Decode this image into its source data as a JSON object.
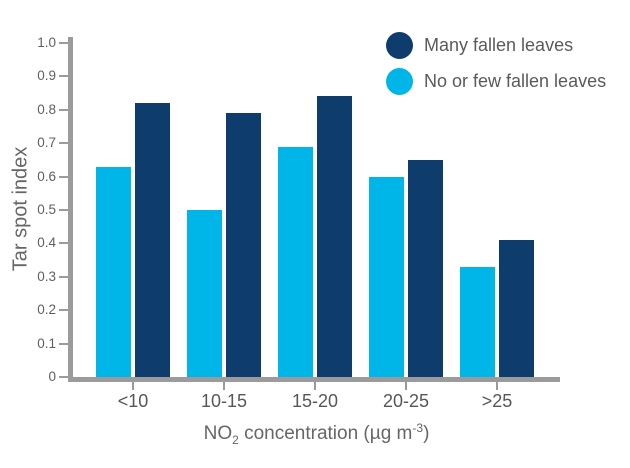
{
  "chart_data": {
    "type": "bar",
    "title": "",
    "categories": [
      "<10",
      "10-15",
      "15-20",
      "20-25",
      ">25"
    ],
    "series": [
      {
        "name": "Many fallen leaves",
        "color": "#0e3c6d",
        "position_in_group": "right",
        "values": [
          0.82,
          0.79,
          0.84,
          0.65,
          0.41
        ]
      },
      {
        "name": "No or few fallen leaves",
        "color": "#00b5e8",
        "position_in_group": "left",
        "values": [
          0.63,
          0.5,
          0.69,
          0.6,
          0.33
        ]
      }
    ],
    "ylabel": "Tar spot index",
    "xlabel": "NO2 concentration (µg m-3)",
    "xlabel_parts": {
      "base1": "NO",
      "sub": "2",
      "base2": " concentration (µg m",
      "sup": "-3",
      "base3": ")"
    },
    "ylim": [
      0,
      1.0
    ],
    "y_ticks": [
      {
        "value": 0.0,
        "label": "0"
      },
      {
        "value": 0.1,
        "label": "0.1"
      },
      {
        "value": 0.2,
        "label": "0.2"
      },
      {
        "value": 0.3,
        "label": "0.3"
      },
      {
        "value": 0.4,
        "label": "0.4"
      },
      {
        "value": 0.5,
        "label": "0.5"
      },
      {
        "value": 0.6,
        "label": "0.6"
      },
      {
        "value": 0.7,
        "label": "0.7"
      },
      {
        "value": 0.8,
        "label": "0.8"
      },
      {
        "value": 0.9,
        "label": "0.9"
      },
      {
        "value": 1.0,
        "label": "1.0"
      }
    ],
    "grid": false,
    "legend_position": "top-right",
    "axis_color": "#9b9b9b",
    "text_color": "#5a5a5a"
  }
}
